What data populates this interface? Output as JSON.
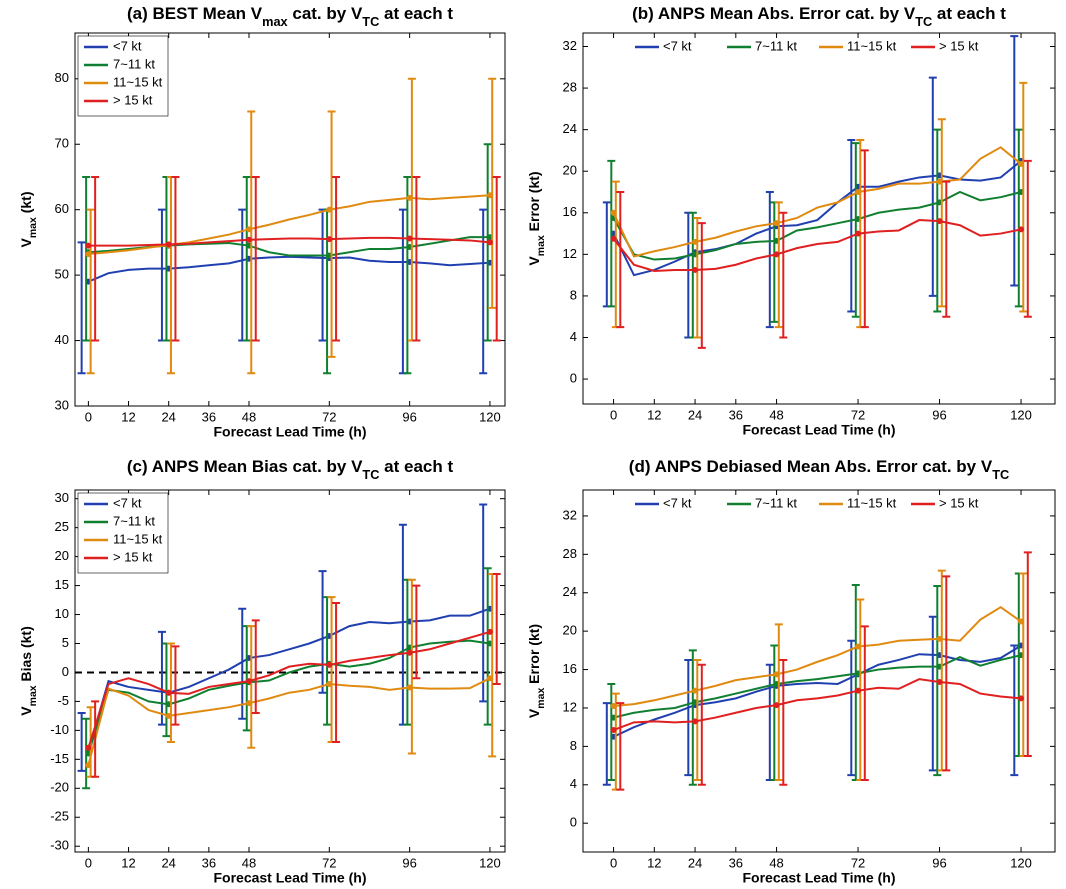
{
  "chart_data": [
    {
      "type": "line",
      "title": [
        "(a) BEST Mean V",
        "max",
        " cat. by V",
        "TC",
        " at each t"
      ],
      "xlabel": "Forecast Lead Time (h)",
      "ylabel": [
        "V",
        "max",
        " (kt)"
      ],
      "legend": "upper left",
      "xlim": [
        -4,
        124.5
      ],
      "xticks": [
        0,
        12,
        24,
        36,
        48,
        72,
        96,
        120
      ],
      "ylim": [
        30,
        87
      ],
      "yticks": [
        30,
        40,
        50,
        60,
        70,
        80
      ],
      "x": [
        0,
        6,
        12,
        18,
        24,
        30,
        36,
        42,
        48,
        54,
        60,
        66,
        72,
        78,
        84,
        90,
        96,
        102,
        108,
        114,
        120
      ],
      "bar_x": [
        0,
        24,
        48,
        72,
        96,
        120
      ],
      "series": [
        {
          "name": "<7 kt",
          "color": "#2040b0",
          "values": [
            49,
            50.3,
            50.8,
            51,
            51,
            51.2,
            51.5,
            51.8,
            52.5,
            52.7,
            52.8,
            52.7,
            52.6,
            52.7,
            52.2,
            52,
            52,
            51.8,
            51.5,
            51.7,
            51.9
          ],
          "bar_low": [
            35,
            40,
            40,
            40,
            35,
            35
          ],
          "bar_high": [
            55,
            60,
            60,
            60,
            60,
            60
          ]
        },
        {
          "name": "7~11 kt",
          "color": "#108030",
          "values": [
            53.5,
            53.7,
            54,
            54.3,
            54.5,
            54.7,
            54.8,
            54.9,
            54.5,
            53.5,
            53,
            53,
            53,
            53.5,
            54,
            54,
            54.3,
            54.8,
            55.3,
            55.8,
            55.8
          ],
          "bar_low": [
            40,
            40,
            40,
            35,
            35,
            40
          ],
          "bar_high": [
            65,
            65,
            65,
            60,
            65,
            70
          ]
        },
        {
          "name": "11~15 kt",
          "color": "#e08a10",
          "values": [
            53.2,
            53.5,
            53.8,
            54.2,
            54.6,
            55,
            55.6,
            56.2,
            57,
            57.7,
            58.5,
            59.2,
            60,
            60.5,
            61.2,
            61.5,
            61.8,
            61.6,
            61.8,
            62,
            62.2
          ],
          "bar_low": [
            35,
            35,
            35,
            37.5,
            40,
            45
          ],
          "bar_high": [
            60,
            65,
            75,
            75,
            80,
            80
          ]
        },
        {
          "name": "> 15 kt",
          "color": "#e02020",
          "values": [
            54.5,
            54.5,
            54.5,
            54.6,
            54.7,
            54.8,
            55,
            55.2,
            55.4,
            55.5,
            55.6,
            55.6,
            55.5,
            55.6,
            55.7,
            55.7,
            55.6,
            55.5,
            55.4,
            55.3,
            55
          ],
          "bar_low": [
            40,
            40,
            40,
            40,
            40,
            40
          ],
          "bar_high": [
            65,
            65,
            65,
            65,
            65,
            65
          ]
        }
      ]
    },
    {
      "type": "line",
      "title": [
        "(b) ANPS Mean Abs. Error cat. by V",
        "TC",
        " at each t"
      ],
      "xlabel": "Forecast Lead Time (h)",
      "ylabel": [
        "V",
        "max",
        " Error (kt)"
      ],
      "legend": "upper center",
      "xlim": [
        -9,
        130
      ],
      "xticks": [
        0,
        12,
        24,
        36,
        48,
        72,
        96,
        120
      ],
      "ylim": [
        -2.4,
        33.3
      ],
      "yticks": [
        0,
        4,
        8,
        12,
        16,
        20,
        24,
        28,
        32
      ],
      "x": [
        0,
        6,
        12,
        18,
        24,
        30,
        36,
        42,
        48,
        54,
        60,
        66,
        72,
        78,
        84,
        90,
        96,
        102,
        108,
        114,
        120
      ],
      "bar_x": [
        0,
        24,
        48,
        72,
        96,
        120
      ],
      "series": [
        {
          "name": "<7 kt",
          "color": "#2040b0",
          "values": [
            14,
            10,
            10.5,
            11.3,
            12.2,
            12.5,
            13,
            14,
            14.7,
            14.8,
            15.3,
            17,
            18.5,
            18.5,
            19,
            19.4,
            19.6,
            19.2,
            19.1,
            19.4,
            21
          ],
          "bar_low": [
            7,
            4,
            5,
            6.5,
            8,
            9
          ],
          "bar_high": [
            17,
            16,
            18,
            23,
            29,
            33
          ]
        },
        {
          "name": "7~11 kt",
          "color": "#108030",
          "values": [
            15.5,
            12,
            11.5,
            11.6,
            12,
            12.4,
            13,
            13.2,
            13.3,
            14.3,
            14.6,
            15,
            15.4,
            16,
            16.3,
            16.5,
            17,
            18,
            17.2,
            17.5,
            18
          ],
          "bar_low": [
            7,
            4,
            5.5,
            6,
            6.5,
            7
          ],
          "bar_high": [
            21,
            16,
            17,
            22.7,
            24,
            24
          ]
        },
        {
          "name": "11~15 kt",
          "color": "#e08a10",
          "values": [
            16,
            11.8,
            12.3,
            12.7,
            13.2,
            13.6,
            14.2,
            14.7,
            15,
            15.5,
            16.5,
            17,
            18,
            18.3,
            18.8,
            18.8,
            19,
            19.2,
            21.2,
            22.3,
            20.7
          ],
          "bar_low": [
            5,
            4,
            5,
            5,
            7,
            6.5
          ],
          "bar_high": [
            19,
            15.5,
            17,
            23,
            25,
            28.5
          ]
        },
        {
          "name": "> 15 kt",
          "color": "#e02020",
          "values": [
            13.5,
            11,
            10.4,
            10.5,
            10.5,
            10.6,
            11,
            11.6,
            12,
            12.6,
            13,
            13.2,
            14,
            14.2,
            14.3,
            15.3,
            15.2,
            14.8,
            13.8,
            14,
            14.4
          ],
          "bar_low": [
            5,
            3,
            4,
            5,
            6,
            6
          ],
          "bar_high": [
            18,
            15,
            16,
            22,
            19,
            21
          ]
        }
      ]
    },
    {
      "type": "line",
      "title": [
        "(c) ANPS Mean Bias cat. by V",
        "TC",
        " at each t"
      ],
      "xlabel": "Forecast Lead Time (h)",
      "ylabel": [
        "V",
        "max",
        " Bias (kt)"
      ],
      "legend": "upper left",
      "hline": 0,
      "xlim": [
        -4,
        124.5
      ],
      "xticks": [
        0,
        12,
        24,
        36,
        48,
        72,
        96,
        120
      ],
      "ylim": [
        -31,
        31.5
      ],
      "yticks": [
        -30,
        -25,
        -20,
        -15,
        -10,
        -5,
        0,
        5,
        10,
        15,
        20,
        25,
        30
      ],
      "x": [
        0,
        6,
        12,
        18,
        24,
        30,
        36,
        42,
        48,
        54,
        60,
        66,
        72,
        78,
        84,
        90,
        96,
        102,
        108,
        114,
        120
      ],
      "bar_x": [
        0,
        24,
        48,
        72,
        96,
        120
      ],
      "series": [
        {
          "name": "<7 kt",
          "color": "#2040b0",
          "values": [
            -13.5,
            -1.5,
            -2.5,
            -3,
            -3.5,
            -2.5,
            -1,
            0.5,
            2.5,
            3,
            4,
            5,
            6.3,
            8,
            8.7,
            8.5,
            8.8,
            9,
            9.8,
            9.8,
            11
          ],
          "bar_low": [
            -17,
            -9,
            -8,
            -3.5,
            -9,
            -5
          ],
          "bar_high": [
            -7,
            7,
            11,
            17.5,
            25.5,
            29
          ]
        },
        {
          "name": "7~11 kt",
          "color": "#108030",
          "values": [
            -14,
            -3,
            -3.5,
            -5,
            -5.5,
            -4.5,
            -3,
            -2.3,
            -1.7,
            -1.4,
            0,
            1,
            1.5,
            1,
            1.5,
            2.5,
            4.3,
            5,
            5.3,
            5.5,
            5
          ],
          "bar_low": [
            -20,
            -11,
            -10,
            -9,
            -9,
            -9
          ],
          "bar_high": [
            -8,
            5,
            8,
            13,
            16,
            18
          ]
        },
        {
          "name": "11~15 kt",
          "color": "#e08a10",
          "values": [
            -16,
            -2.8,
            -4,
            -6.5,
            -7.5,
            -7,
            -6.5,
            -6,
            -5.3,
            -4.5,
            -3.5,
            -3,
            -2,
            -2.3,
            -2.5,
            -3,
            -2.6,
            -2.8,
            -2.8,
            -2.7,
            -1
          ],
          "bar_low": [
            -18,
            -12,
            -13,
            -12,
            -14,
            -14.5
          ],
          "bar_high": [
            -6,
            5,
            8,
            13,
            16,
            17
          ]
        },
        {
          "name": "> 15 kt",
          "color": "#e02020",
          "values": [
            -13,
            -2,
            -1,
            -2,
            -3.5,
            -3.7,
            -2.5,
            -2,
            -1.5,
            -0.5,
            1,
            1.5,
            1.3,
            2,
            2.5,
            3,
            3.4,
            4,
            5,
            6,
            7
          ],
          "bar_low": [
            -18,
            -9,
            -7,
            -12,
            -1,
            -2
          ],
          "bar_high": [
            -5,
            4.5,
            9,
            12,
            15,
            17
          ]
        }
      ]
    },
    {
      "type": "line",
      "title": [
        "(d) ANPS Debiased Mean Abs. Error cat. by V",
        "TC"
      ],
      "xlabel": "Forecast Lead Time (h)",
      "ylabel": [
        "V",
        "max",
        " Error (kt)"
      ],
      "legend": "upper center",
      "xlim": [
        -9,
        130
      ],
      "xticks": [
        0,
        12,
        24,
        36,
        48,
        72,
        96,
        120
      ],
      "ylim": [
        -3,
        34.7
      ],
      "yticks": [
        0,
        4,
        8,
        12,
        16,
        20,
        24,
        28,
        32
      ],
      "x": [
        0,
        6,
        12,
        18,
        24,
        30,
        36,
        42,
        48,
        54,
        60,
        66,
        72,
        78,
        84,
        90,
        96,
        102,
        108,
        114,
        120
      ],
      "bar_x": [
        0,
        24,
        48,
        72,
        96,
        120
      ],
      "series": [
        {
          "name": "<7 kt",
          "color": "#2040b0",
          "values": [
            9,
            10,
            10.8,
            11.5,
            12.3,
            12.6,
            13,
            13.7,
            14.3,
            14.5,
            14.6,
            14.5,
            15.5,
            16.5,
            17,
            17.6,
            17.5,
            17,
            16.8,
            17.2,
            18.5
          ],
          "bar_low": [
            4,
            5,
            4.5,
            5,
            5.5,
            5
          ],
          "bar_high": [
            12.5,
            17,
            16.5,
            19,
            21.5,
            18.5
          ]
        },
        {
          "name": "7~11 kt",
          "color": "#108030",
          "values": [
            11,
            11.5,
            11.8,
            12,
            12.6,
            13,
            13.5,
            14,
            14.5,
            14.8,
            15,
            15.3,
            15.6,
            16,
            16.2,
            16.3,
            16.3,
            17.3,
            16.4,
            17,
            17.5
          ],
          "bar_low": [
            4.5,
            4,
            4.5,
            4.5,
            5,
            7
          ],
          "bar_high": [
            14.5,
            18,
            18.5,
            24.8,
            24.7,
            26
          ]
        },
        {
          "name": "11~15 kt",
          "color": "#e08a10",
          "values": [
            12.2,
            12.4,
            12.8,
            13.3,
            13.8,
            14.3,
            14.9,
            15.2,
            15.5,
            16,
            16.8,
            17.5,
            18.4,
            18.6,
            19,
            19.1,
            19.2,
            19,
            21.2,
            22.5,
            21
          ],
          "bar_low": [
            3.5,
            4.5,
            4.5,
            4.5,
            5.5,
            7
          ],
          "bar_high": [
            13.5,
            17,
            20.7,
            23.3,
            26.3,
            26
          ]
        },
        {
          "name": "> 15 kt",
          "color": "#e02020",
          "values": [
            9.7,
            10.5,
            10.6,
            10.5,
            10.6,
            11,
            11.5,
            12,
            12.3,
            12.8,
            13,
            13.3,
            13.8,
            14.1,
            14,
            15,
            14.7,
            14.5,
            13.5,
            13.2,
            13
          ],
          "bar_low": [
            3.5,
            4,
            4,
            4.5,
            5.5,
            7
          ],
          "bar_high": [
            12.5,
            16.5,
            17,
            20.5,
            25.7,
            28.2
          ]
        }
      ]
    }
  ]
}
